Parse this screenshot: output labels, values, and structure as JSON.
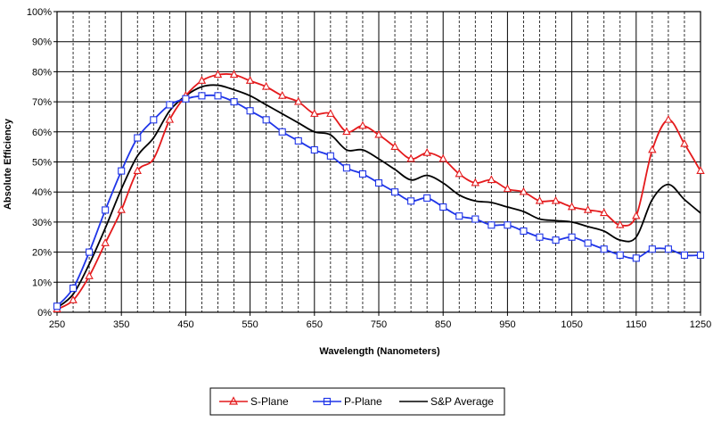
{
  "chart_data": {
    "type": "line",
    "title": "",
    "xlabel": "Wavelength (Nanometers)",
    "ylabel": "Absolute Efficiency",
    "xlim": [
      250,
      1250
    ],
    "ylim": [
      0,
      100
    ],
    "x_ticks": [
      250,
      350,
      450,
      550,
      650,
      750,
      850,
      950,
      1050,
      1150,
      1250
    ],
    "x_tick_labels": [
      "250",
      "350",
      "450",
      "550",
      "650",
      "750",
      "850",
      "950",
      "1050",
      "1150",
      "1250"
    ],
    "y_ticks": [
      0,
      10,
      20,
      30,
      40,
      50,
      60,
      70,
      80,
      90,
      100
    ],
    "y_tick_labels": [
      "0%",
      "10%",
      "20%",
      "30%",
      "40%",
      "50%",
      "60%",
      "70%",
      "80%",
      "90%",
      "100%"
    ],
    "minor_x_step": 25,
    "grid": true,
    "legend_position": "bottom",
    "series": [
      {
        "name": "S-Plane",
        "color": "#e41a1c",
        "marker": "triangle",
        "x": [
          250,
          275,
          300,
          325,
          350,
          375,
          400,
          425,
          450,
          475,
          500,
          525,
          550,
          575,
          600,
          625,
          650,
          675,
          700,
          725,
          750,
          775,
          800,
          825,
          850,
          875,
          900,
          925,
          950,
          975,
          1000,
          1025,
          1050,
          1075,
          1100,
          1125,
          1150,
          1175,
          1200,
          1225,
          1250
        ],
        "y": [
          1,
          4,
          12,
          23,
          34,
          47,
          51,
          64,
          72,
          77,
          79,
          79,
          77,
          75,
          72,
          70,
          66,
          66,
          60,
          62,
          59,
          55,
          51,
          53,
          51,
          46,
          43,
          44,
          41,
          40,
          37,
          37,
          35,
          34,
          33,
          29,
          32,
          54,
          64,
          56,
          47
        ],
        "marker_x": [
          250,
          275,
          300,
          325,
          350,
          375,
          425,
          450,
          475,
          500,
          525,
          550,
          575,
          600,
          625,
          650,
          675,
          700,
          725,
          750,
          775,
          800,
          825,
          850,
          875,
          900,
          925,
          950,
          975,
          1000,
          1025,
          1050,
          1075,
          1100,
          1125,
          1150,
          1175,
          1200,
          1225,
          1250
        ]
      },
      {
        "name": "P-Plane",
        "color": "#1f35e8",
        "marker": "square",
        "x": [
          250,
          275,
          300,
          325,
          350,
          375,
          400,
          425,
          450,
          475,
          500,
          525,
          550,
          575,
          600,
          625,
          650,
          675,
          700,
          725,
          750,
          775,
          800,
          825,
          850,
          875,
          900,
          925,
          950,
          975,
          1000,
          1025,
          1050,
          1075,
          1100,
          1125,
          1150,
          1175,
          1200,
          1225,
          1250
        ],
        "y": [
          2,
          8,
          20,
          34,
          47,
          58,
          64,
          69,
          71,
          72,
          72,
          70,
          67,
          64,
          60,
          57,
          54,
          52,
          48,
          46,
          43,
          40,
          37,
          38,
          35,
          32,
          31,
          29,
          29,
          27,
          25,
          24,
          25,
          23,
          21,
          19,
          18,
          21,
          21,
          19,
          19
        ],
        "marker_x": [
          250,
          275,
          300,
          325,
          350,
          375,
          400,
          425,
          450,
          475,
          500,
          525,
          550,
          575,
          600,
          625,
          650,
          675,
          700,
          725,
          750,
          775,
          800,
          825,
          850,
          875,
          900,
          925,
          950,
          975,
          1000,
          1025,
          1050,
          1075,
          1100,
          1125,
          1150,
          1175,
          1200,
          1225,
          1250
        ]
      },
      {
        "name": "S&P Average",
        "color": "#000000",
        "marker": "none",
        "x": [
          250,
          275,
          300,
          325,
          350,
          375,
          400,
          425,
          450,
          475,
          500,
          525,
          550,
          575,
          600,
          625,
          650,
          675,
          700,
          725,
          750,
          775,
          800,
          825,
          850,
          875,
          900,
          925,
          950,
          975,
          1000,
          1025,
          1050,
          1075,
          1100,
          1125,
          1150,
          1175,
          1200,
          1225,
          1250
        ],
        "y": [
          1.5,
          6,
          16,
          28,
          41,
          52,
          58,
          67,
          72,
          75,
          75.5,
          74,
          72,
          69,
          66,
          63,
          60,
          59,
          54,
          54,
          51,
          47.5,
          44,
          45.5,
          43,
          39,
          37,
          36.5,
          35,
          33.5,
          31,
          30.5,
          30,
          28.5,
          27,
          24,
          25,
          37.5,
          42.5,
          37.5,
          33
        ]
      }
    ]
  }
}
